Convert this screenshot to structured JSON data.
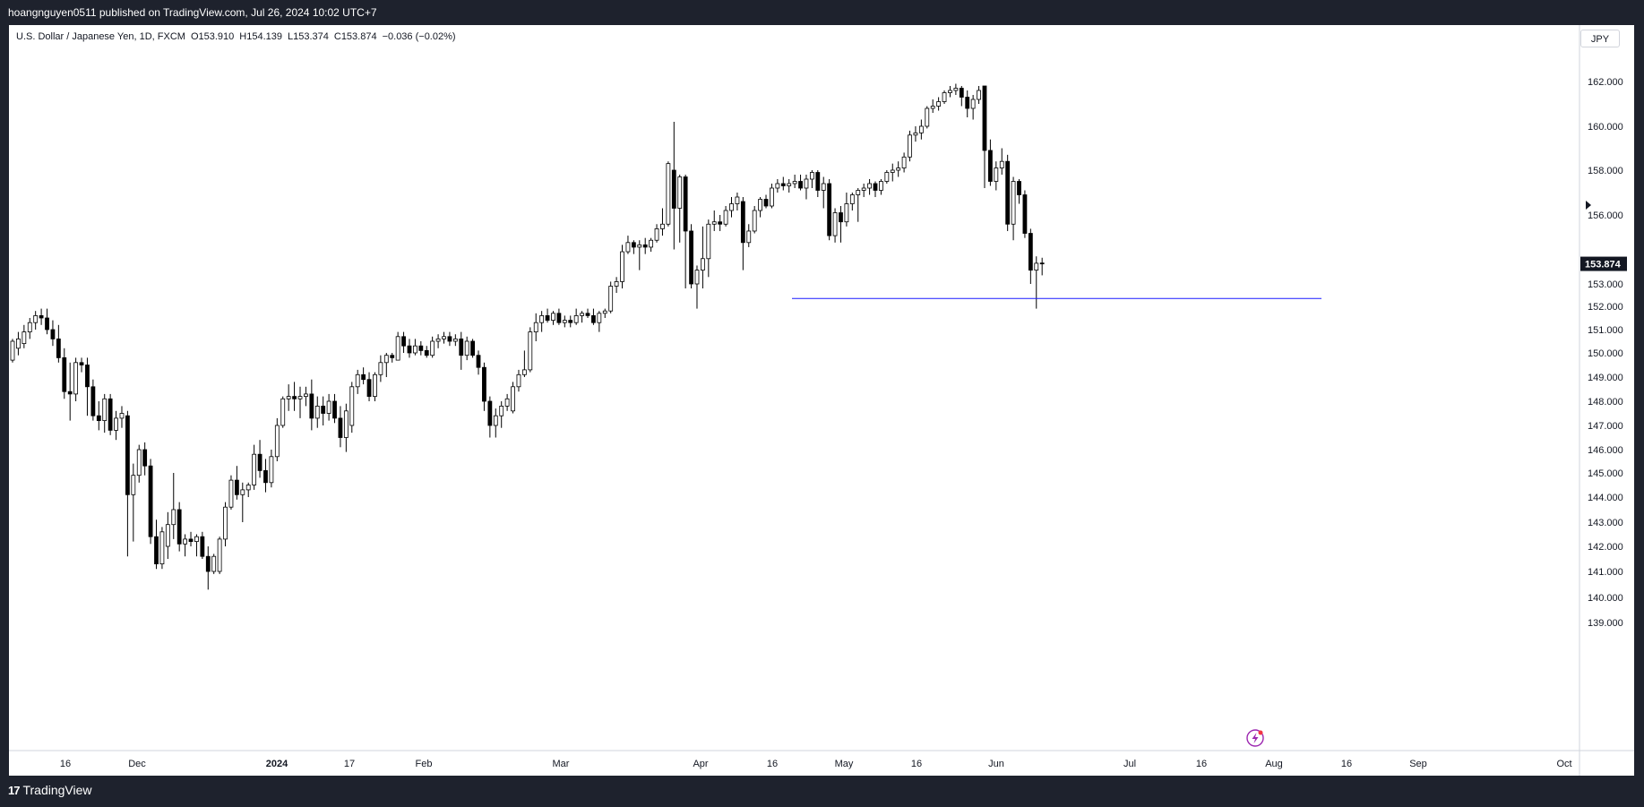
{
  "header": {
    "publisher_text": "hoangnguyen0511 published on TradingView.com, Jul 26, 2024 10:02 UTC+7"
  },
  "legend": {
    "symbol": "U.S. Dollar / Japanese Yen, 1D, FXCM",
    "open": "O153.910",
    "high": "H154.139",
    "low": "L153.374",
    "close": "C153.874",
    "change": "−0.036 (−0.02%)"
  },
  "currency_button": "JPY",
  "footer": {
    "logo_text": "TradingView",
    "logo_icon": "tradingview-logo-icon"
  },
  "colors": {
    "horizontal_line": "#1a1aff",
    "up_candle": "#ffffff",
    "down_candle": "#000000",
    "price_label_bg": "#131722"
  },
  "chart_data": {
    "type": "candlestick",
    "symbol": "USDJPY",
    "timeframe": "1D",
    "y_axis_ticks": [
      "139.000",
      "140.000",
      "141.000",
      "142.000",
      "143.000",
      "144.000",
      "145.000",
      "146.000",
      "147.000",
      "148.000",
      "149.000",
      "150.000",
      "151.000",
      "152.000",
      "153.000",
      "156.000",
      "158.000",
      "160.000",
      "162.000"
    ],
    "x_axis_labels": [
      "16",
      "Dec",
      "2024",
      "17",
      "Feb",
      "Mar",
      "Apr",
      "16",
      "May",
      "16",
      "Jun",
      "Jul",
      "16",
      "Aug",
      "16",
      "Sep",
      "Oct"
    ],
    "last_price_label": "153.874",
    "horizontal_line_price": 152.35,
    "candles": [
      {
        "o": 149.7,
        "h": 150.6,
        "l": 149.6,
        "c": 150.5
      },
      {
        "o": 150.2,
        "h": 150.9,
        "l": 149.9,
        "c": 150.6
      },
      {
        "o": 150.4,
        "h": 151.2,
        "l": 150.2,
        "c": 150.9
      },
      {
        "o": 150.9,
        "h": 151.5,
        "l": 150.6,
        "c": 151.3
      },
      {
        "o": 151.3,
        "h": 151.8,
        "l": 151.0,
        "c": 151.6
      },
      {
        "o": 151.6,
        "h": 151.9,
        "l": 151.2,
        "c": 151.5
      },
      {
        "o": 151.5,
        "h": 151.9,
        "l": 150.8,
        "c": 151.0
      },
      {
        "o": 151.0,
        "h": 151.4,
        "l": 150.3,
        "c": 150.6
      },
      {
        "o": 150.6,
        "h": 151.2,
        "l": 149.6,
        "c": 149.8
      },
      {
        "o": 149.8,
        "h": 150.2,
        "l": 148.1,
        "c": 148.4
      },
      {
        "o": 148.4,
        "h": 149.6,
        "l": 147.2,
        "c": 148.3
      },
      {
        "o": 148.3,
        "h": 149.8,
        "l": 148.0,
        "c": 149.6
      },
      {
        "o": 149.6,
        "h": 149.8,
        "l": 149.2,
        "c": 149.5
      },
      {
        "o": 149.5,
        "h": 149.8,
        "l": 147.4,
        "c": 148.6
      },
      {
        "o": 148.6,
        "h": 148.9,
        "l": 147.2,
        "c": 147.4
      },
      {
        "o": 147.4,
        "h": 148.0,
        "l": 146.8,
        "c": 147.2
      },
      {
        "o": 147.2,
        "h": 148.3,
        "l": 146.7,
        "c": 148.1
      },
      {
        "o": 148.1,
        "h": 148.3,
        "l": 146.6,
        "c": 146.8
      },
      {
        "o": 146.8,
        "h": 147.6,
        "l": 146.4,
        "c": 147.3
      },
      {
        "o": 147.3,
        "h": 147.8,
        "l": 146.9,
        "c": 147.5
      },
      {
        "o": 147.4,
        "h": 147.6,
        "l": 141.6,
        "c": 144.1
      },
      {
        "o": 144.1,
        "h": 145.4,
        "l": 142.2,
        "c": 144.9
      },
      {
        "o": 144.9,
        "h": 146.2,
        "l": 144.6,
        "c": 146.0
      },
      {
        "o": 146.0,
        "h": 146.3,
        "l": 144.9,
        "c": 145.3
      },
      {
        "o": 145.3,
        "h": 145.6,
        "l": 142.1,
        "c": 142.4
      },
      {
        "o": 142.4,
        "h": 143.1,
        "l": 141.1,
        "c": 141.3
      },
      {
        "o": 141.3,
        "h": 142.8,
        "l": 141.1,
        "c": 142.6
      },
      {
        "o": 142.0,
        "h": 143.4,
        "l": 141.5,
        "c": 142.9
      },
      {
        "o": 142.9,
        "h": 145.0,
        "l": 142.3,
        "c": 143.5
      },
      {
        "o": 143.5,
        "h": 143.8,
        "l": 141.8,
        "c": 142.1
      },
      {
        "o": 142.1,
        "h": 142.5,
        "l": 141.6,
        "c": 142.3
      },
      {
        "o": 142.3,
        "h": 142.6,
        "l": 142.0,
        "c": 142.2
      },
      {
        "o": 142.2,
        "h": 142.5,
        "l": 141.6,
        "c": 142.4
      },
      {
        "o": 142.4,
        "h": 142.6,
        "l": 141.5,
        "c": 141.6
      },
      {
        "o": 141.6,
        "h": 142.0,
        "l": 140.3,
        "c": 141.0
      },
      {
        "o": 141.0,
        "h": 141.7,
        "l": 140.9,
        "c": 141.6
      },
      {
        "o": 141.0,
        "h": 142.4,
        "l": 140.9,
        "c": 142.3
      },
      {
        "o": 142.3,
        "h": 143.8,
        "l": 142.0,
        "c": 143.6
      },
      {
        "o": 143.6,
        "h": 144.9,
        "l": 143.5,
        "c": 144.7
      },
      {
        "o": 144.7,
        "h": 145.3,
        "l": 143.9,
        "c": 144.1
      },
      {
        "o": 144.1,
        "h": 144.6,
        "l": 143.0,
        "c": 144.3
      },
      {
        "o": 144.3,
        "h": 144.6,
        "l": 144.0,
        "c": 144.5
      },
      {
        "o": 144.5,
        "h": 146.2,
        "l": 144.3,
        "c": 145.8
      },
      {
        "o": 145.8,
        "h": 146.4,
        "l": 144.8,
        "c": 145.1
      },
      {
        "o": 145.1,
        "h": 145.6,
        "l": 144.2,
        "c": 144.6
      },
      {
        "o": 144.6,
        "h": 146.0,
        "l": 144.4,
        "c": 145.7
      },
      {
        "o": 145.7,
        "h": 147.3,
        "l": 145.5,
        "c": 147.0
      },
      {
        "o": 147.0,
        "h": 148.2,
        "l": 146.9,
        "c": 148.1
      },
      {
        "o": 148.1,
        "h": 148.7,
        "l": 147.6,
        "c": 148.2
      },
      {
        "o": 148.2,
        "h": 148.8,
        "l": 147.6,
        "c": 148.1
      },
      {
        "o": 148.1,
        "h": 148.6,
        "l": 147.3,
        "c": 148.2
      },
      {
        "o": 148.2,
        "h": 148.6,
        "l": 147.8,
        "c": 148.3
      },
      {
        "o": 148.3,
        "h": 148.9,
        "l": 146.8,
        "c": 147.3
      },
      {
        "o": 147.3,
        "h": 148.2,
        "l": 146.9,
        "c": 147.8
      },
      {
        "o": 147.8,
        "h": 148.2,
        "l": 147.0,
        "c": 147.5
      },
      {
        "o": 147.5,
        "h": 148.3,
        "l": 147.2,
        "c": 148.0
      },
      {
        "o": 148.0,
        "h": 148.3,
        "l": 147.1,
        "c": 147.3
      },
      {
        "o": 147.3,
        "h": 147.8,
        "l": 146.1,
        "c": 146.5
      },
      {
        "o": 146.5,
        "h": 147.9,
        "l": 145.9,
        "c": 147.6
      },
      {
        "o": 147.0,
        "h": 148.8,
        "l": 146.7,
        "c": 148.6
      },
      {
        "o": 148.6,
        "h": 149.3,
        "l": 148.3,
        "c": 149.1
      },
      {
        "o": 149.1,
        "h": 149.4,
        "l": 148.7,
        "c": 148.9
      },
      {
        "o": 148.9,
        "h": 149.2,
        "l": 148.0,
        "c": 148.2
      },
      {
        "o": 148.2,
        "h": 149.2,
        "l": 148.0,
        "c": 149.1
      },
      {
        "o": 149.1,
        "h": 149.9,
        "l": 148.8,
        "c": 149.6
      },
      {
        "o": 149.6,
        "h": 150.0,
        "l": 149.0,
        "c": 149.9
      },
      {
        "o": 149.9,
        "h": 150.0,
        "l": 149.6,
        "c": 149.8
      },
      {
        "o": 149.7,
        "h": 150.9,
        "l": 149.7,
        "c": 150.7
      },
      {
        "o": 150.7,
        "h": 150.9,
        "l": 150.0,
        "c": 150.3
      },
      {
        "o": 150.3,
        "h": 150.6,
        "l": 149.8,
        "c": 150.0
      },
      {
        "o": 150.0,
        "h": 150.6,
        "l": 149.9,
        "c": 150.3
      },
      {
        "o": 150.3,
        "h": 150.5,
        "l": 149.9,
        "c": 150.1
      },
      {
        "o": 150.1,
        "h": 150.3,
        "l": 149.8,
        "c": 149.9
      },
      {
        "o": 149.9,
        "h": 150.7,
        "l": 149.8,
        "c": 150.5
      },
      {
        "o": 150.5,
        "h": 150.8,
        "l": 150.2,
        "c": 150.6
      },
      {
        "o": 150.6,
        "h": 150.9,
        "l": 150.4,
        "c": 150.7
      },
      {
        "o": 150.7,
        "h": 150.9,
        "l": 150.3,
        "c": 150.5
      },
      {
        "o": 150.5,
        "h": 150.8,
        "l": 150.3,
        "c": 150.6
      },
      {
        "o": 150.6,
        "h": 150.9,
        "l": 149.3,
        "c": 149.9
      },
      {
        "o": 149.9,
        "h": 150.7,
        "l": 149.7,
        "c": 150.5
      },
      {
        "o": 150.5,
        "h": 150.6,
        "l": 149.8,
        "c": 149.9
      },
      {
        "o": 149.9,
        "h": 150.1,
        "l": 149.1,
        "c": 149.4
      },
      {
        "o": 149.4,
        "h": 149.6,
        "l": 147.6,
        "c": 148.0
      },
      {
        "o": 148.0,
        "h": 148.2,
        "l": 146.5,
        "c": 147.0
      },
      {
        "o": 147.0,
        "h": 147.7,
        "l": 146.5,
        "c": 147.4
      },
      {
        "o": 147.4,
        "h": 148.0,
        "l": 146.9,
        "c": 147.8
      },
      {
        "o": 147.8,
        "h": 148.3,
        "l": 147.6,
        "c": 148.1
      },
      {
        "o": 147.6,
        "h": 148.8,
        "l": 147.5,
        "c": 148.6
      },
      {
        "o": 148.6,
        "h": 149.3,
        "l": 148.4,
        "c": 149.1
      },
      {
        "o": 149.1,
        "h": 150.1,
        "l": 149.0,
        "c": 149.3
      },
      {
        "o": 149.3,
        "h": 151.1,
        "l": 149.2,
        "c": 150.9
      },
      {
        "o": 150.9,
        "h": 151.7,
        "l": 150.5,
        "c": 151.3
      },
      {
        "o": 151.3,
        "h": 151.8,
        "l": 150.9,
        "c": 151.6
      },
      {
        "o": 151.6,
        "h": 151.9,
        "l": 151.3,
        "c": 151.4
      },
      {
        "o": 151.4,
        "h": 151.8,
        "l": 151.2,
        "c": 151.7
      },
      {
        "o": 151.7,
        "h": 151.9,
        "l": 151.2,
        "c": 151.3
      },
      {
        "o": 151.3,
        "h": 151.6,
        "l": 151.1,
        "c": 151.4
      },
      {
        "o": 151.4,
        "h": 151.6,
        "l": 151.1,
        "c": 151.3
      },
      {
        "o": 151.3,
        "h": 151.9,
        "l": 151.2,
        "c": 151.6
      },
      {
        "o": 151.6,
        "h": 151.8,
        "l": 151.3,
        "c": 151.7
      },
      {
        "o": 151.7,
        "h": 151.9,
        "l": 151.5,
        "c": 151.6
      },
      {
        "o": 151.6,
        "h": 151.9,
        "l": 151.2,
        "c": 151.3
      },
      {
        "o": 151.3,
        "h": 151.8,
        "l": 150.9,
        "c": 151.7
      },
      {
        "o": 151.7,
        "h": 151.9,
        "l": 151.5,
        "c": 151.8
      },
      {
        "o": 151.8,
        "h": 153.1,
        "l": 151.7,
        "c": 152.9
      },
      {
        "o": 152.9,
        "h": 153.3,
        "l": 152.6,
        "c": 153.1
      },
      {
        "o": 153.1,
        "h": 154.7,
        "l": 152.8,
        "c": 154.4
      },
      {
        "o": 154.4,
        "h": 155.1,
        "l": 154.3,
        "c": 154.8
      },
      {
        "o": 154.8,
        "h": 154.9,
        "l": 154.3,
        "c": 154.6
      },
      {
        "o": 154.6,
        "h": 154.9,
        "l": 153.6,
        "c": 154.7
      },
      {
        "o": 154.7,
        "h": 155.0,
        "l": 154.3,
        "c": 154.6
      },
      {
        "o": 154.6,
        "h": 155.0,
        "l": 154.4,
        "c": 154.9
      },
      {
        "o": 154.9,
        "h": 155.6,
        "l": 154.8,
        "c": 155.4
      },
      {
        "o": 155.4,
        "h": 156.3,
        "l": 155.1,
        "c": 155.6
      },
      {
        "o": 155.6,
        "h": 158.4,
        "l": 155.5,
        "c": 158.3
      },
      {
        "o": 158.0,
        "h": 160.2,
        "l": 154.5,
        "c": 156.3
      },
      {
        "o": 156.3,
        "h": 157.8,
        "l": 154.8,
        "c": 157.7
      },
      {
        "o": 157.7,
        "h": 157.8,
        "l": 152.8,
        "c": 155.3
      },
      {
        "o": 155.3,
        "h": 155.6,
        "l": 152.8,
        "c": 153.0
      },
      {
        "o": 153.0,
        "h": 153.8,
        "l": 151.9,
        "c": 153.6
      },
      {
        "o": 153.6,
        "h": 155.5,
        "l": 152.8,
        "c": 154.1
      },
      {
        "o": 154.1,
        "h": 155.8,
        "l": 153.3,
        "c": 155.6
      },
      {
        "o": 155.6,
        "h": 156.2,
        "l": 155.3,
        "c": 155.7
      },
      {
        "o": 155.7,
        "h": 156.0,
        "l": 155.3,
        "c": 155.6
      },
      {
        "o": 155.6,
        "h": 156.4,
        "l": 155.5,
        "c": 156.2
      },
      {
        "o": 156.2,
        "h": 156.8,
        "l": 155.9,
        "c": 156.5
      },
      {
        "o": 156.5,
        "h": 157.0,
        "l": 156.2,
        "c": 156.8
      },
      {
        "o": 156.6,
        "h": 156.8,
        "l": 153.6,
        "c": 154.8
      },
      {
        "o": 154.8,
        "h": 155.6,
        "l": 154.6,
        "c": 155.3
      },
      {
        "o": 155.3,
        "h": 156.4,
        "l": 155.2,
        "c": 156.2
      },
      {
        "o": 156.2,
        "h": 156.8,
        "l": 155.9,
        "c": 156.7
      },
      {
        "o": 156.7,
        "h": 156.9,
        "l": 156.3,
        "c": 156.4
      },
      {
        "o": 156.4,
        "h": 157.4,
        "l": 156.3,
        "c": 157.2
      },
      {
        "o": 157.2,
        "h": 157.6,
        "l": 157.0,
        "c": 157.4
      },
      {
        "o": 157.4,
        "h": 157.7,
        "l": 157.1,
        "c": 157.3
      },
      {
        "o": 157.3,
        "h": 157.6,
        "l": 157.0,
        "c": 157.4
      },
      {
        "o": 157.4,
        "h": 157.8,
        "l": 157.2,
        "c": 157.5
      },
      {
        "o": 157.5,
        "h": 157.8,
        "l": 157.1,
        "c": 157.2
      },
      {
        "o": 157.2,
        "h": 157.8,
        "l": 156.7,
        "c": 157.6
      },
      {
        "o": 157.6,
        "h": 158.0,
        "l": 157.2,
        "c": 157.9
      },
      {
        "o": 157.9,
        "h": 158.0,
        "l": 156.8,
        "c": 157.1
      },
      {
        "o": 157.1,
        "h": 157.7,
        "l": 156.3,
        "c": 157.4
      },
      {
        "o": 157.4,
        "h": 157.6,
        "l": 154.9,
        "c": 155.1
      },
      {
        "o": 155.1,
        "h": 156.3,
        "l": 154.8,
        "c": 156.1
      },
      {
        "o": 156.1,
        "h": 156.4,
        "l": 154.8,
        "c": 155.7
      },
      {
        "o": 155.7,
        "h": 157.0,
        "l": 155.5,
        "c": 156.5
      },
      {
        "o": 156.5,
        "h": 157.0,
        "l": 156.2,
        "c": 156.9
      },
      {
        "o": 156.9,
        "h": 157.2,
        "l": 155.7,
        "c": 157.1
      },
      {
        "o": 157.1,
        "h": 157.4,
        "l": 156.8,
        "c": 157.2
      },
      {
        "o": 157.2,
        "h": 157.6,
        "l": 156.9,
        "c": 157.4
      },
      {
        "o": 157.4,
        "h": 157.5,
        "l": 156.8,
        "c": 157.1
      },
      {
        "o": 157.1,
        "h": 157.6,
        "l": 156.9,
        "c": 157.5
      },
      {
        "o": 157.5,
        "h": 158.0,
        "l": 157.4,
        "c": 157.9
      },
      {
        "o": 157.9,
        "h": 158.3,
        "l": 157.5,
        "c": 158.0
      },
      {
        "o": 158.0,
        "h": 158.4,
        "l": 157.7,
        "c": 158.1
      },
      {
        "o": 158.1,
        "h": 158.8,
        "l": 157.9,
        "c": 158.6
      },
      {
        "o": 158.6,
        "h": 159.8,
        "l": 158.4,
        "c": 159.6
      },
      {
        "o": 159.6,
        "h": 160.0,
        "l": 159.3,
        "c": 159.7
      },
      {
        "o": 159.7,
        "h": 160.3,
        "l": 159.4,
        "c": 160.0
      },
      {
        "o": 160.0,
        "h": 160.9,
        "l": 159.9,
        "c": 160.8
      },
      {
        "o": 160.8,
        "h": 161.2,
        "l": 160.6,
        "c": 160.9
      },
      {
        "o": 160.9,
        "h": 161.3,
        "l": 160.7,
        "c": 161.1
      },
      {
        "o": 161.1,
        "h": 161.6,
        "l": 161.0,
        "c": 161.5
      },
      {
        "o": 161.5,
        "h": 161.8,
        "l": 161.3,
        "c": 161.6
      },
      {
        "o": 161.6,
        "h": 161.9,
        "l": 161.4,
        "c": 161.7
      },
      {
        "o": 161.7,
        "h": 161.8,
        "l": 160.9,
        "c": 161.3
      },
      {
        "o": 161.3,
        "h": 161.6,
        "l": 160.4,
        "c": 160.8
      },
      {
        "o": 160.8,
        "h": 161.4,
        "l": 160.3,
        "c": 161.2
      },
      {
        "o": 161.2,
        "h": 161.8,
        "l": 161.0,
        "c": 161.6
      },
      {
        "o": 161.8,
        "h": 161.8,
        "l": 157.2,
        "c": 158.9
      },
      {
        "o": 158.9,
        "h": 159.4,
        "l": 157.3,
        "c": 157.5
      },
      {
        "o": 157.5,
        "h": 158.4,
        "l": 157.1,
        "c": 158.1
      },
      {
        "o": 158.1,
        "h": 159.0,
        "l": 157.8,
        "c": 158.4
      },
      {
        "o": 158.4,
        "h": 158.7,
        "l": 155.3,
        "c": 155.6
      },
      {
        "o": 155.6,
        "h": 157.7,
        "l": 154.9,
        "c": 157.5
      },
      {
        "o": 157.5,
        "h": 157.6,
        "l": 156.5,
        "c": 156.9
      },
      {
        "o": 156.9,
        "h": 157.1,
        "l": 155.0,
        "c": 155.2
      },
      {
        "o": 155.2,
        "h": 155.4,
        "l": 153.0,
        "c": 153.6
      },
      {
        "o": 153.6,
        "h": 154.2,
        "l": 151.9,
        "c": 153.9
      },
      {
        "o": 153.91,
        "h": 154.139,
        "l": 153.374,
        "c": 153.874
      }
    ]
  }
}
